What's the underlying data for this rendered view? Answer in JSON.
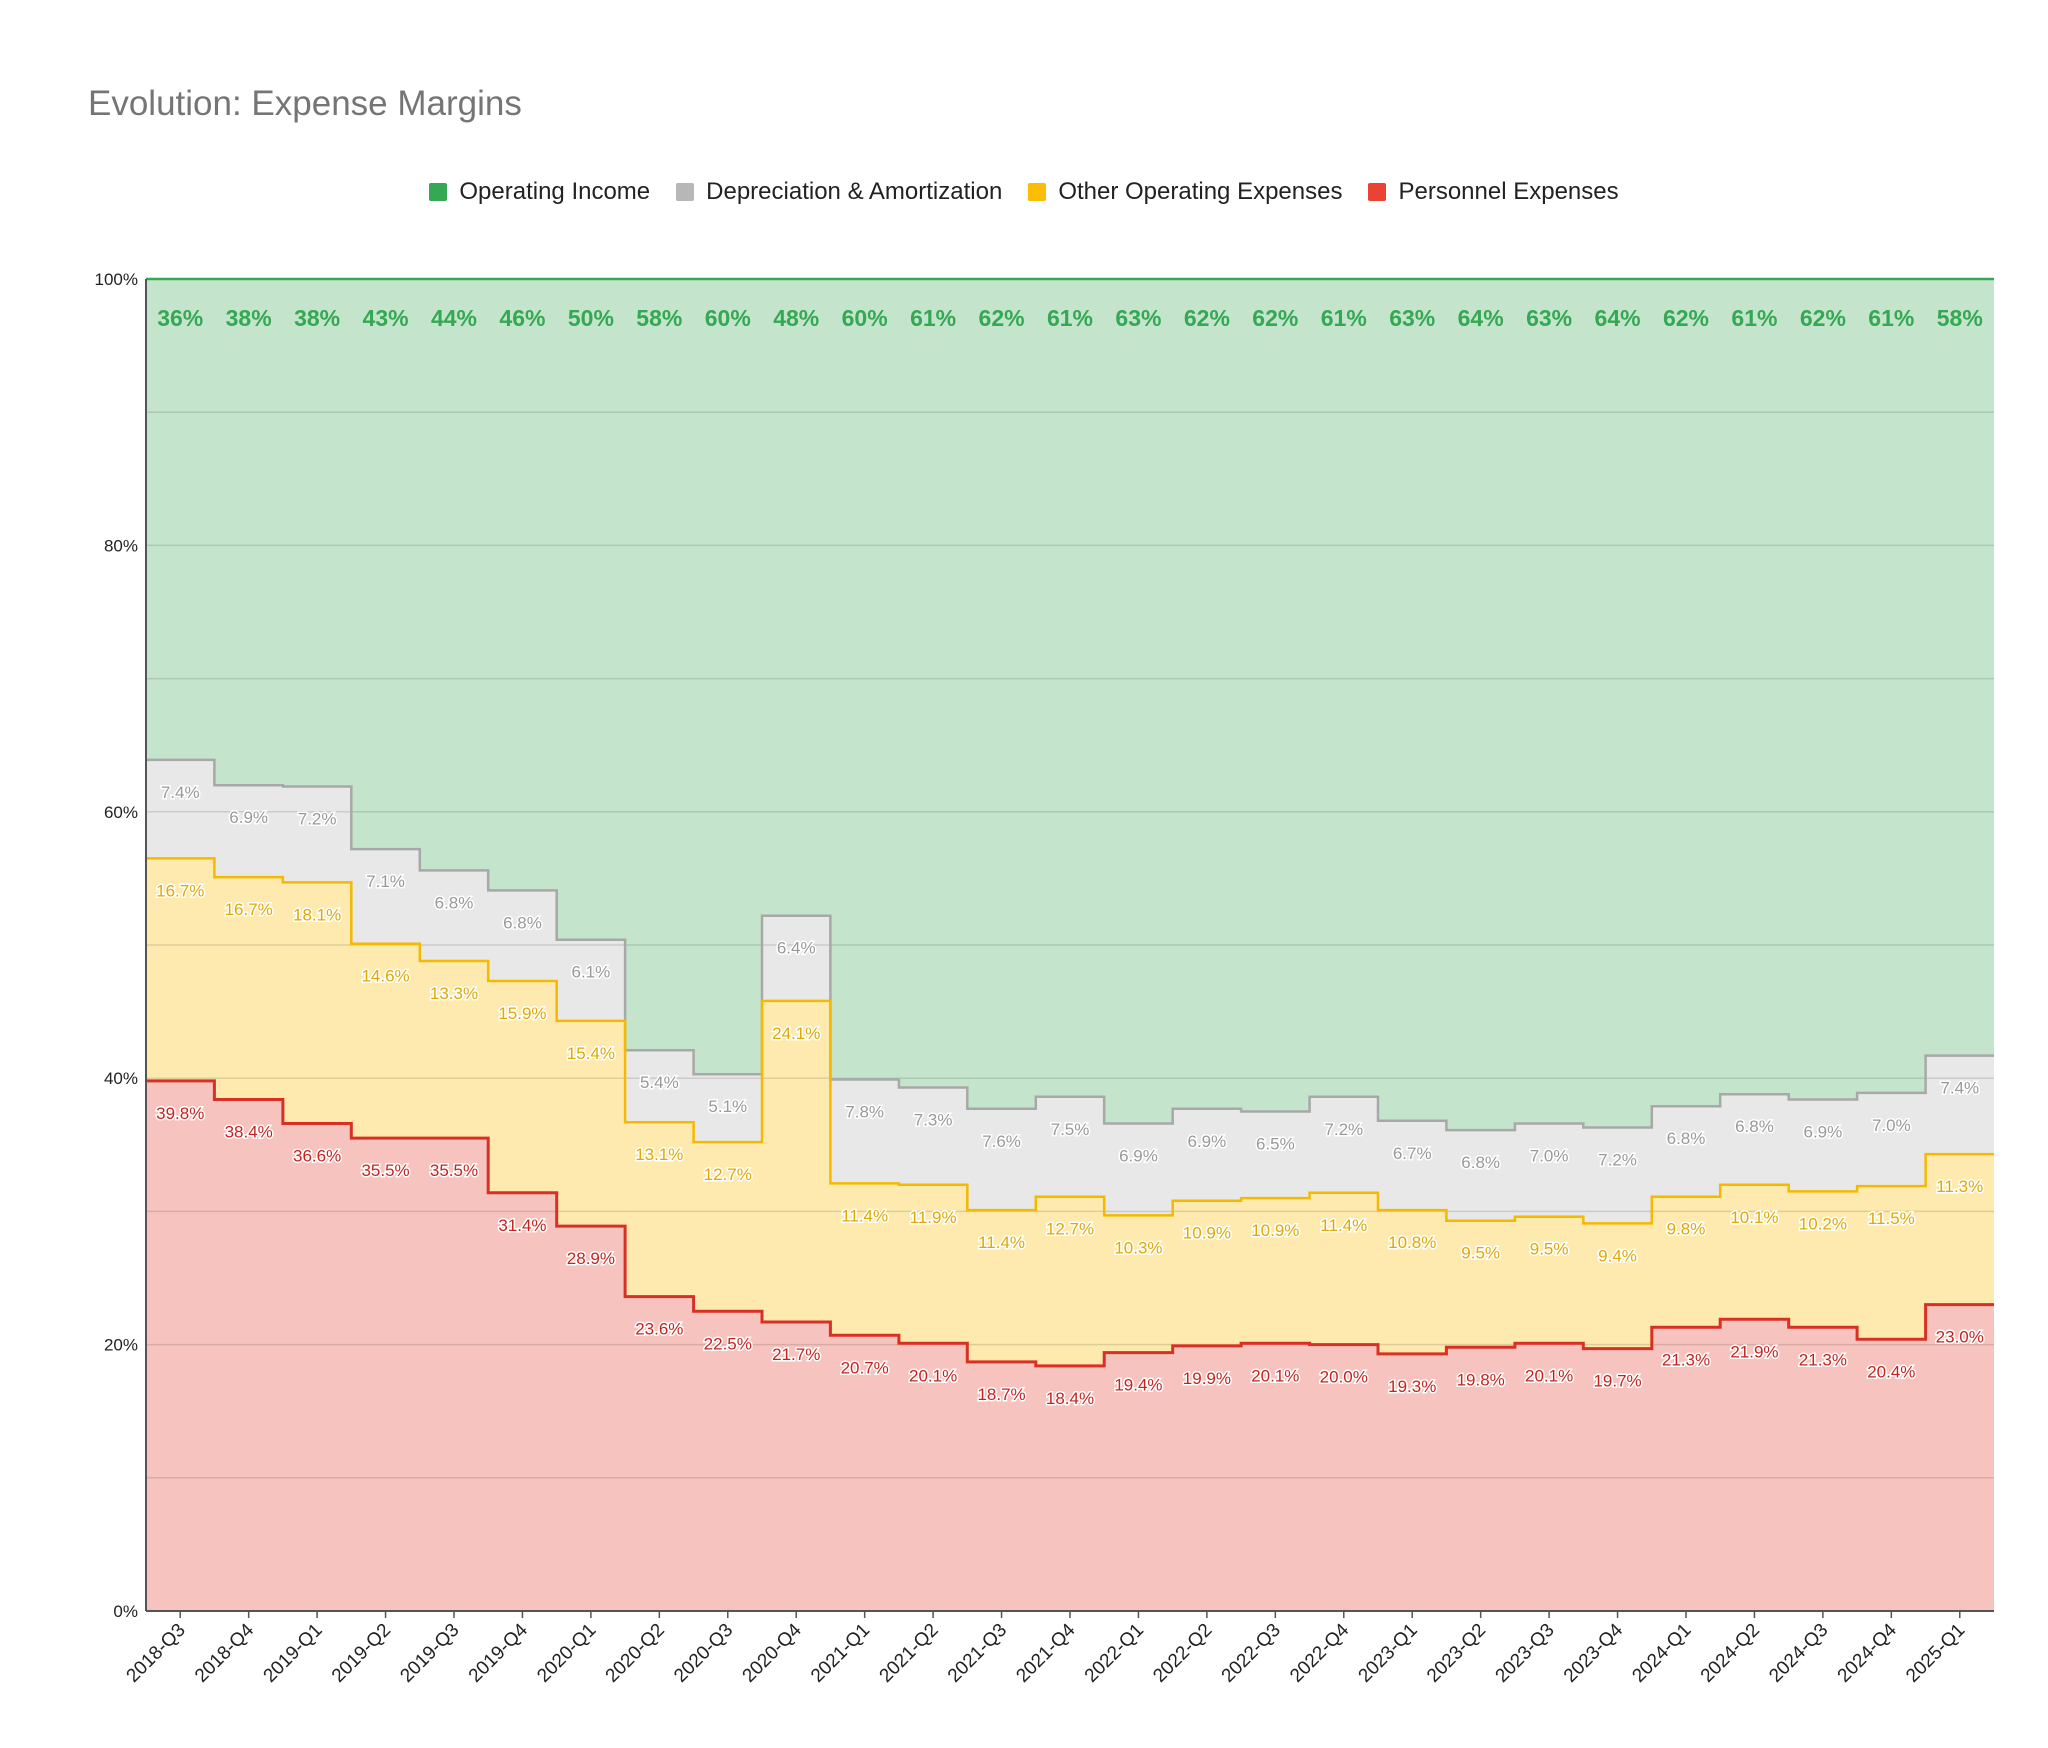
{
  "title": "Evolution: Expense Margins",
  "colors": {
    "operating_income": "#34a853",
    "depreciation": "#b7b7b7",
    "other_opex": "#fbbc04",
    "personnel": "#ea4335"
  },
  "chart_data": {
    "type": "area",
    "title": "Evolution: Expense Margins",
    "xlabel": "",
    "ylabel": "",
    "ylim": [
      0,
      100
    ],
    "y_ticks": [
      "0%",
      "20%",
      "40%",
      "60%",
      "80%",
      "100%"
    ],
    "stacked": true,
    "step": true,
    "grid": true,
    "legend_position": "top",
    "categories": [
      "2018-Q3",
      "2018-Q4",
      "2019-Q1",
      "2019-Q2",
      "2019-Q3",
      "2019-Q4",
      "2020-Q1",
      "2020-Q2",
      "2020-Q3",
      "2020-Q4",
      "2021-Q1",
      "2021-Q2",
      "2021-Q3",
      "2021-Q4",
      "2022-Q1",
      "2022-Q2",
      "2022-Q3",
      "2022-Q4",
      "2023-Q1",
      "2023-Q2",
      "2023-Q3",
      "2023-Q4",
      "2024-Q1",
      "2024-Q2",
      "2024-Q3",
      "2024-Q4",
      "2025-Q1"
    ],
    "series": [
      {
        "name": "Operating Income",
        "key": "operating_income",
        "labels": [
          "36%",
          "38%",
          "38%",
          "43%",
          "44%",
          "46%",
          "50%",
          "58%",
          "60%",
          "48%",
          "60%",
          "61%",
          "62%",
          "61%",
          "63%",
          "62%",
          "62%",
          "61%",
          "63%",
          "64%",
          "63%",
          "64%",
          "62%",
          "61%",
          "62%",
          "61%",
          "58%"
        ]
      },
      {
        "name": "Depreciation & Amortization",
        "key": "depreciation",
        "values": [
          7.4,
          6.9,
          7.2,
          7.1,
          6.8,
          6.8,
          6.1,
          5.4,
          5.1,
          6.4,
          7.8,
          7.3,
          7.6,
          7.5,
          6.9,
          6.9,
          6.5,
          7.2,
          6.7,
          6.8,
          7.0,
          7.2,
          6.8,
          6.8,
          6.9,
          7.0,
          7.4
        ]
      },
      {
        "name": "Other Operating Expenses",
        "key": "other_opex",
        "values": [
          16.7,
          16.7,
          18.1,
          14.6,
          13.3,
          15.9,
          15.4,
          13.1,
          12.7,
          24.1,
          11.4,
          11.9,
          11.4,
          12.7,
          10.3,
          10.9,
          10.9,
          11.4,
          10.8,
          9.5,
          9.5,
          9.4,
          9.8,
          10.1,
          10.2,
          11.5,
          11.3
        ]
      },
      {
        "name": "Personnel Expenses",
        "key": "personnel",
        "values": [
          39.8,
          38.4,
          36.6,
          35.5,
          35.5,
          31.4,
          28.9,
          23.6,
          22.5,
          21.7,
          20.7,
          20.1,
          18.7,
          18.4,
          19.4,
          19.9,
          20.1,
          20.0,
          19.3,
          19.8,
          20.1,
          19.7,
          21.3,
          21.9,
          21.3,
          20.4,
          23.0
        ]
      }
    ]
  }
}
